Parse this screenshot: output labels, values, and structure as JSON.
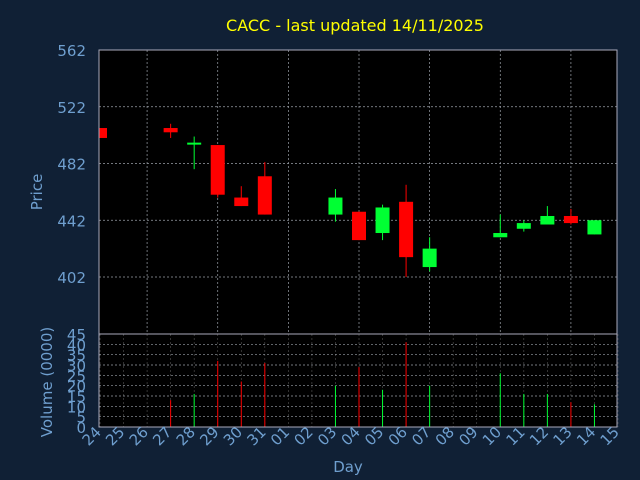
{
  "chart_data": [
    {
      "type": "candlestick",
      "title": "CACC - last updated 14/11/2025",
      "ylabel": "Price",
      "ylim": [
        402,
        562
      ],
      "yticks": [
        402,
        442,
        482,
        522,
        562
      ],
      "grid": true,
      "x": [
        "24",
        "25",
        "26",
        "27",
        "28",
        "29",
        "30",
        "31",
        "01",
        "02",
        "03",
        "04",
        "05",
        "06",
        "07",
        "08",
        "09",
        "10",
        "11",
        "12",
        "13",
        "14",
        "15"
      ],
      "candles": [
        {
          "x": "24",
          "open": 507,
          "close": 500,
          "high": 507,
          "low": 500
        },
        {
          "x": "27",
          "open": 507,
          "close": 504,
          "high": 510,
          "low": 500
        },
        {
          "x": "28",
          "open": 496,
          "close": 496,
          "high": 501,
          "low": 478
        },
        {
          "x": "29",
          "open": 495,
          "close": 460,
          "high": 495,
          "low": 458
        },
        {
          "x": "30",
          "open": 458,
          "close": 452,
          "high": 466,
          "low": 452
        },
        {
          "x": "31",
          "open": 473,
          "close": 446,
          "high": 483,
          "low": 446
        },
        {
          "x": "03",
          "open": 446,
          "close": 458,
          "high": 464,
          "low": 441
        },
        {
          "x": "04",
          "open": 448,
          "close": 428,
          "high": 448,
          "low": 428
        },
        {
          "x": "05",
          "open": 433,
          "close": 451,
          "high": 453,
          "low": 428
        },
        {
          "x": "06",
          "open": 455,
          "close": 416,
          "high": 467,
          "low": 402
        },
        {
          "x": "07",
          "open": 409,
          "close": 422,
          "high": 430,
          "low": 406
        },
        {
          "x": "10",
          "open": 430,
          "close": 433,
          "high": 446,
          "low": 430
        },
        {
          "x": "11",
          "open": 436,
          "close": 440,
          "high": 442,
          "low": 434
        },
        {
          "x": "12",
          "open": 439,
          "close": 445,
          "high": 452,
          "low": 439
        },
        {
          "x": "13",
          "open": 445,
          "close": 440,
          "high": 450,
          "low": 439
        },
        {
          "x": "14",
          "open": 432,
          "close": 442,
          "high": 442,
          "low": 432
        }
      ]
    },
    {
      "type": "bar",
      "ylabel": "Volume (0000)",
      "xlabel": "Day",
      "ylim": [
        0,
        45
      ],
      "yticks": [
        0,
        5,
        10,
        15,
        20,
        25,
        30,
        35,
        40,
        45
      ],
      "grid": true,
      "categories": [
        "24",
        "25",
        "26",
        "27",
        "28",
        "29",
        "30",
        "31",
        "01",
        "02",
        "03",
        "04",
        "05",
        "06",
        "07",
        "08",
        "09",
        "10",
        "11",
        "12",
        "13",
        "14",
        "15"
      ],
      "values": [
        0,
        0,
        0,
        13,
        16,
        32,
        22,
        31,
        0,
        0,
        20,
        29,
        18,
        41,
        20,
        0,
        0,
        26,
        16,
        16,
        12,
        11,
        0
      ],
      "colors": [
        "",
        "",
        "",
        "red",
        "green",
        "red",
        "red",
        "red",
        "",
        "",
        "green",
        "red",
        "green",
        "red",
        "green",
        "",
        "",
        "green",
        "green",
        "green",
        "red",
        "green",
        ""
      ]
    }
  ],
  "colors": {
    "background": "#102035",
    "plot_bg": "#000000",
    "grid": "#9aa0a8",
    "up": "#00ff33",
    "down": "#ff0000",
    "title": "#ffff00",
    "axis_text": "#6f9fcf"
  }
}
